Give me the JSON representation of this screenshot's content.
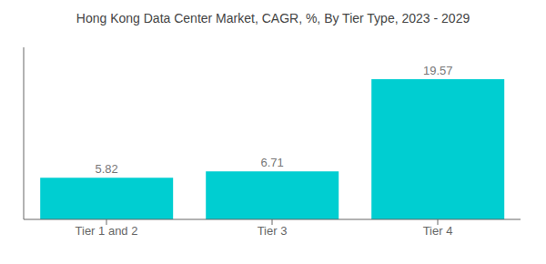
{
  "chart_data": {
    "type": "bar",
    "title": "Hong Kong Data Center Market, CAGR, %, By Tier Type, 2023 - 2029",
    "categories": [
      "Tier 1 and 2",
      "Tier 3",
      "Tier 4"
    ],
    "values": [
      5.82,
      6.71,
      19.57
    ],
    "color": "#00CED1",
    "ylim": [
      0,
      24
    ],
    "grid": false,
    "data_labels": true,
    "tick_labels": "x"
  }
}
